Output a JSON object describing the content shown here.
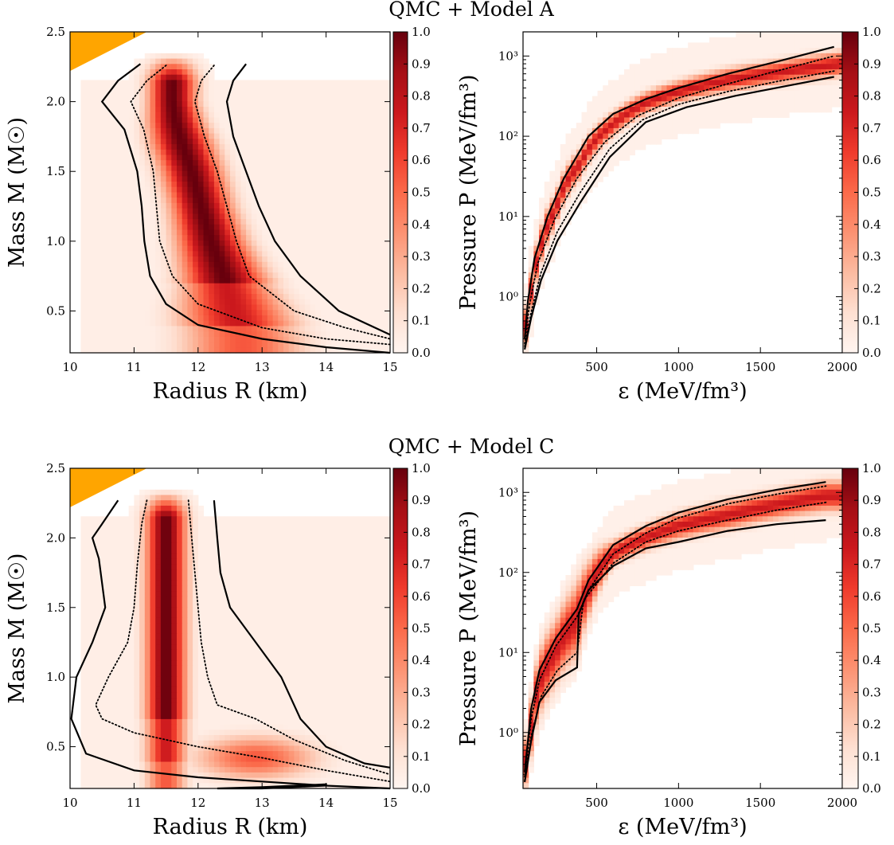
{
  "titles": [
    "QMC + Model A",
    "QMC + Model C"
  ],
  "colorbar": {
    "colormap": "Reds",
    "ticks": [
      "0.0",
      "0.1",
      "0.2",
      "0.3",
      "0.4",
      "0.5",
      "0.6",
      "0.7",
      "0.8",
      "0.9",
      "1.0"
    ]
  },
  "shaded_region_color": "#ffa500",
  "chart_data": [
    {
      "type": "heatmap",
      "panel": "top-left",
      "title": "QMC + Model A",
      "xlabel": "Radius R (km)",
      "ylabel": "Mass M (M☉)",
      "xlim": [
        10,
        15
      ],
      "ylim": [
        0.2,
        2.5
      ],
      "xticks": [
        "10",
        "11",
        "12",
        "13",
        "14",
        "15"
      ],
      "yticks": [
        "0.5",
        "1.0",
        "1.5",
        "2.0",
        "2.5"
      ],
      "colorbar_range": [
        0.0,
        1.0
      ],
      "density_ridge": {
        "R": [
          12.7,
          12.55,
          12.4,
          12.2,
          12.05,
          11.9,
          11.75,
          11.65,
          11.6
        ],
        "M": [
          0.3,
          0.5,
          0.75,
          1.0,
          1.25,
          1.5,
          1.7,
          1.85,
          2.0
        ],
        "width": [
          0.9,
          0.8,
          0.6,
          0.5,
          0.45,
          0.45,
          0.45,
          0.4,
          0.35
        ]
      },
      "excluded_region": {
        "R": [
          10,
          11.2,
          10
        ],
        "M": [
          2.5,
          2.5,
          2.22
        ]
      },
      "contours": [
        {
          "style": "solid",
          "R": [
            11.1,
            10.75,
            10.5,
            10.85,
            11.05,
            11.12,
            11.16,
            11.25,
            11.5,
            12.0,
            13.0,
            14.0,
            15.0
          ],
          "M": [
            2.27,
            2.15,
            2.0,
            1.8,
            1.5,
            1.25,
            1.0,
            0.75,
            0.55,
            0.4,
            0.3,
            0.24,
            0.2
          ]
        },
        {
          "style": "dotted",
          "R": [
            11.5,
            11.2,
            10.95,
            11.15,
            11.3,
            11.35,
            11.4,
            11.6,
            12.0,
            13.0,
            14.0,
            15.0
          ],
          "M": [
            2.26,
            2.15,
            2.0,
            1.8,
            1.5,
            1.25,
            1.0,
            0.75,
            0.55,
            0.38,
            0.3,
            0.26
          ]
        },
        {
          "style": "dotted",
          "R": [
            12.25,
            12.05,
            11.95,
            12.1,
            12.3,
            12.45,
            12.6,
            12.8,
            13.5,
            14.3,
            15.0
          ],
          "M": [
            2.26,
            2.15,
            2.0,
            1.75,
            1.5,
            1.25,
            1.0,
            0.75,
            0.5,
            0.38,
            0.3
          ]
        },
        {
          "style": "solid",
          "R": [
            12.75,
            12.55,
            12.45,
            12.55,
            12.75,
            12.95,
            13.2,
            13.6,
            14.2,
            15.0
          ],
          "M": [
            2.27,
            2.15,
            2.0,
            1.75,
            1.5,
            1.25,
            1.0,
            0.75,
            0.5,
            0.33
          ]
        }
      ]
    },
    {
      "type": "heatmap",
      "panel": "top-right",
      "title": "QMC + Model A",
      "xlabel": "ε (MeV/fm³)",
      "ylabel": "Pressure P (MeV/fm³)",
      "xlim": [
        50,
        2000
      ],
      "ylim": [
        0.2,
        2000
      ],
      "yscale": "log",
      "xticks": [
        "500",
        "1000",
        "1500",
        "2000"
      ],
      "yticks": [
        "10⁰",
        "10¹",
        "10²",
        "10³"
      ],
      "colorbar_range": [
        0.0,
        1.0
      ],
      "density_ridge": {
        "e": [
          60,
          100,
          150,
          250,
          400,
          600,
          800,
          1000,
          1300,
          1600,
          2000
        ],
        "P": [
          0.3,
          1.2,
          3.5,
          12,
          45,
          140,
          260,
          360,
          500,
          620,
          800
        ],
        "width": [
          0.2,
          0.2,
          0.2,
          0.18,
          0.16,
          0.13,
          0.12,
          0.12,
          0.13,
          0.13,
          0.14
        ]
      },
      "contours": [
        {
          "style": "solid",
          "e": [
            60,
            80,
            120,
            200,
            300,
            450,
            600,
            800,
            1000,
            1300,
            1600,
            1950
          ],
          "P": [
            0.3,
            0.9,
            3.0,
            10,
            30,
            100,
            190,
            290,
            400,
            600,
            850,
            1300
          ]
        },
        {
          "style": "dotted",
          "e": [
            60,
            90,
            140,
            240,
            380,
            550,
            750,
            1000,
            1300,
            1600,
            1950
          ],
          "P": [
            0.26,
            0.8,
            2.6,
            9,
            30,
            85,
            180,
            300,
            450,
            650,
            1000
          ]
        },
        {
          "style": "dotted",
          "e": [
            60,
            100,
            160,
            260,
            400,
            580,
            780,
            1000,
            1300,
            1600,
            1950
          ],
          "P": [
            0.24,
            0.65,
            2.0,
            6.5,
            20,
            70,
            160,
            250,
            360,
            480,
            650
          ]
        },
        {
          "style": "solid",
          "e": [
            60,
            100,
            160,
            260,
            400,
            580,
            800,
            1050,
            1350,
            1650,
            1950
          ],
          "P": [
            0.22,
            0.55,
            1.6,
            5,
            15,
            55,
            150,
            230,
            320,
            420,
            550
          ]
        }
      ]
    },
    {
      "type": "heatmap",
      "panel": "bottom-left",
      "title": "QMC + Model C",
      "xlabel": "Radius R (km)",
      "ylabel": "Mass M (M☉)",
      "xlim": [
        10,
        15
      ],
      "ylim": [
        0.2,
        2.5
      ],
      "xticks": [
        "10",
        "11",
        "12",
        "13",
        "14",
        "15"
      ],
      "yticks": [
        "0.5",
        "1.0",
        "1.5",
        "2.0",
        "2.5"
      ],
      "colorbar_range": [
        0.0,
        1.0
      ],
      "density_ridge": {
        "R": [
          11.5,
          11.5,
          11.45,
          11.4,
          11.4,
          11.5
        ],
        "M": [
          2.2,
          1.8,
          1.5,
          1.25,
          1.0,
          0.8
        ],
        "width": [
          0.3,
          0.35,
          0.45,
          0.5,
          0.55,
          0.55
        ]
      },
      "density_secondary": {
        "R": 12.9,
        "M": 0.42,
        "width": 0.9,
        "height": 0.15,
        "level": 0.55
      },
      "excluded_region": {
        "R": [
          10,
          11.2,
          10
        ],
        "M": [
          2.5,
          2.5,
          2.22
        ]
      },
      "contours": [
        {
          "style": "solid",
          "R": [
            10.75,
            10.5,
            10.35,
            10.45,
            10.55,
            10.35,
            10.1,
            10.02,
            10.25,
            11.0,
            12.0,
            13.0,
            14.0,
            15.0
          ],
          "M": [
            2.27,
            2.1,
            2.0,
            1.85,
            1.5,
            1.25,
            1.0,
            0.7,
            0.45,
            0.33,
            0.28,
            0.25,
            0.22,
            0.2
          ]
        },
        {
          "style": "dotted",
          "R": [
            11.2,
            11.12,
            11.05,
            11.0,
            10.9,
            10.6,
            10.4,
            10.5,
            11.0,
            12.0,
            13.0,
            14.0,
            15.0
          ],
          "M": [
            2.27,
            2.1,
            1.8,
            1.5,
            1.25,
            1.0,
            0.8,
            0.7,
            0.6,
            0.5,
            0.42,
            0.33,
            0.25
          ]
        },
        {
          "style": "dotted",
          "R": [
            11.85,
            11.9,
            11.95,
            12.0,
            12.05,
            12.15,
            12.3,
            12.9,
            13.5,
            14.3,
            15.0
          ],
          "M": [
            2.27,
            2.0,
            1.75,
            1.5,
            1.25,
            1.0,
            0.8,
            0.7,
            0.55,
            0.4,
            0.3
          ]
        },
        {
          "style": "solid",
          "R": [
            12.25,
            12.3,
            12.35,
            12.5,
            12.9,
            13.3,
            13.6,
            14.0,
            14.6,
            15.0
          ],
          "M": [
            2.27,
            2.0,
            1.75,
            1.5,
            1.25,
            1.0,
            0.7,
            0.5,
            0.38,
            0.35
          ]
        },
        {
          "style": "solid",
          "R": [
            12.3,
            13.0,
            14.0,
            14.0,
            13.0,
            12.3
          ],
          "M": [
            0.2,
            0.21,
            0.23,
            0.22,
            0.2,
            0.2
          ]
        }
      ]
    },
    {
      "type": "heatmap",
      "panel": "bottom-right",
      "title": "QMC + Model C",
      "xlabel": "ε (MeV/fm³)",
      "ylabel": "Pressure P (MeV/fm³)",
      "xlim": [
        50,
        2000
      ],
      "ylim": [
        0.2,
        2000
      ],
      "yscale": "log",
      "xticks": [
        "500",
        "1000",
        "1500",
        "2000"
      ],
      "yticks": [
        "10⁰",
        "10¹",
        "10²",
        "10³"
      ],
      "colorbar_range": [
        0.0,
        1.0
      ],
      "density_ridge": {
        "e": [
          60,
          100,
          150,
          250,
          380,
          450,
          600,
          800,
          1000,
          1300,
          1600,
          1900
        ],
        "P": [
          0.3,
          1.2,
          4,
          10,
          25,
          60,
          170,
          270,
          380,
          520,
          700,
          900
        ],
        "width": [
          0.25,
          0.3,
          0.35,
          0.35,
          0.4,
          0.3,
          0.14,
          0.14,
          0.15,
          0.16,
          0.16,
          0.17
        ]
      },
      "contours": [
        {
          "style": "solid",
          "e": [
            60,
            100,
            150,
            250,
            380,
            450,
            600,
            800,
            1000,
            1300,
            1600,
            1900
          ],
          "P": [
            0.32,
            2.0,
            6.0,
            15,
            35,
            80,
            220,
            380,
            560,
            820,
            1080,
            1350
          ]
        },
        {
          "style": "dotted",
          "e": [
            60,
            100,
            150,
            250,
            380,
            450,
            600,
            800,
            1000,
            1300,
            1600,
            1900
          ],
          "P": [
            0.28,
            1.5,
            4.5,
            12,
            28,
            60,
            170,
            310,
            480,
            720,
            950,
            1200
          ]
        },
        {
          "style": "dotted",
          "e": [
            60,
            100,
            160,
            260,
            380,
            420,
            600,
            800,
            1000,
            1300,
            1600,
            1900
          ],
          "P": [
            0.25,
            0.9,
            2.8,
            6.0,
            10,
            45,
            130,
            240,
            330,
            450,
            600,
            750
          ]
        },
        {
          "style": "solid",
          "e": [
            60,
            100,
            150,
            250,
            380,
            390,
            450,
            600,
            800,
            1000,
            1300,
            1600,
            1900
          ],
          "P": [
            0.24,
            0.8,
            2.4,
            4.5,
            6.5,
            30,
            60,
            120,
            200,
            240,
            330,
            400,
            450
          ]
        }
      ]
    }
  ]
}
